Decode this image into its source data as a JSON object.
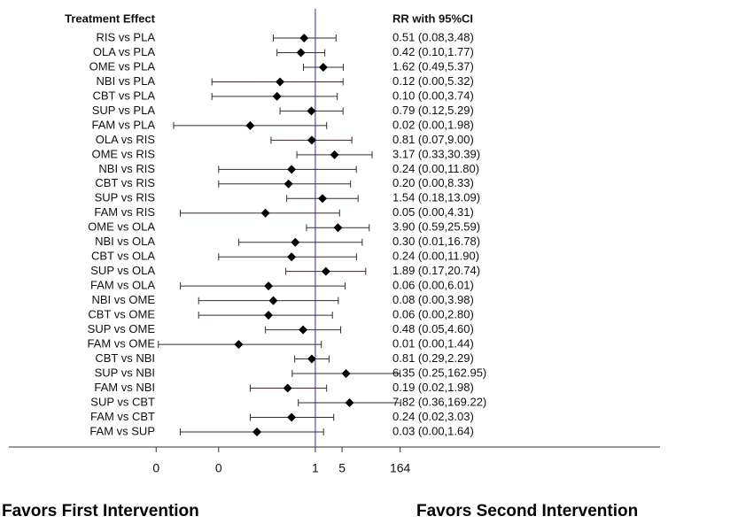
{
  "chart_data": {
    "type": "forest",
    "x_scale": "log",
    "label_header": "Treatment Effect",
    "value_header": "RR with 95%CI",
    "categories": [
      "RIS vs PLA",
      "OLA vs PLA",
      "OME vs PLA",
      "NBI vs PLA",
      "CBT vs PLA",
      "SUP vs PLA",
      "FAM vs PLA",
      "OLA vs RIS",
      "OME vs RIS",
      "NBI vs RIS",
      "CBT vs RIS",
      "SUP vs RIS",
      "FAM vs RIS",
      "OME vs OLA",
      "NBI vs OLA",
      "CBT vs OLA",
      "SUP vs OLA",
      "FAM vs OLA",
      "NBI vs OME",
      "CBT vs OME",
      "SUP vs OME",
      "FAM vs OME",
      "CBT vs NBI",
      "SUP vs NBI",
      "FAM vs NBI",
      "SUP vs CBT",
      "FAM vs CBT",
      "FAM vs SUP"
    ],
    "values": [
      0.51,
      0.42,
      1.62,
      0.12,
      0.1,
      0.79,
      0.02,
      0.81,
      3.17,
      0.24,
      0.2,
      1.54,
      0.05,
      3.9,
      0.3,
      0.24,
      1.89,
      0.06,
      0.08,
      0.06,
      0.48,
      0.01,
      0.81,
      6.35,
      0.19,
      7.82,
      0.24,
      0.03
    ],
    "lower": [
      0.08,
      0.1,
      0.49,
      0.002,
      0.002,
      0.12,
      0.0002,
      0.07,
      0.33,
      0.003,
      0.003,
      0.18,
      0.0003,
      0.59,
      0.01,
      0.003,
      0.17,
      0.0003,
      0.0009,
      0.0009,
      0.05,
      8e-05,
      0.29,
      0.25,
      0.02,
      0.36,
      0.02,
      0.0003
    ],
    "upper": [
      3.48,
      1.77,
      5.37,
      5.32,
      3.74,
      5.29,
      1.98,
      9.0,
      30.39,
      11.8,
      8.33,
      13.09,
      4.31,
      25.59,
      16.78,
      11.9,
      20.74,
      6.01,
      3.98,
      2.8,
      4.6,
      1.44,
      2.29,
      162.95,
      1.98,
      169.22,
      3.03,
      1.64
    ],
    "value_labels": [
      "0.51 (0.08,3.48)",
      "0.42 (0.10,1.77)",
      "1.62 (0.49,5.37)",
      "0.12 (0.00,5.32)",
      "0.10 (0.00,3.74)",
      "0.79 (0.12,5.29)",
      "0.02 (0.00,1.98)",
      "0.81 (0.07,9.00)",
      "3.17 (0.33,30.39)",
      "0.24 (0.00,11.80)",
      "0.20 (0.00,8.33)",
      "1.54 (0.18,13.09)",
      "0.05 (0.00,4.31)",
      "3.90 (0.59,25.59)",
      "0.30 (0.01,16.78)",
      "0.24 (0.00,11.90)",
      "1.89 (0.17,20.74)",
      "0.06 (0.00,6.01)",
      "0.08 (0.00,3.98)",
      "0.06 (0.00,2.80)",
      "0.48 (0.05,4.60)",
      "0.01 (0.00,1.44)",
      "0.81 (0.29,2.29)",
      "6.35 (0.25,162.95)",
      "0.19 (0.02,1.98)",
      "7.82 (0.36,169.22)",
      "0.24 (0.02,3.03)",
      "0.03 (0.00,1.64)"
    ],
    "reference": 1,
    "xlim": [
      1e-08,
      1000000000.0
    ],
    "xticks": [
      {
        "value": 7e-05,
        "label": "0"
      },
      {
        "value": 0.003,
        "label": "0"
      },
      1,
      5,
      164
    ],
    "annotations": [
      "Favors First Intervention",
      "Favors Second Intervention"
    ],
    "marker_color": "#000000",
    "ci_color": "#3a2a2a",
    "reference_color": "#5b5bd6"
  }
}
